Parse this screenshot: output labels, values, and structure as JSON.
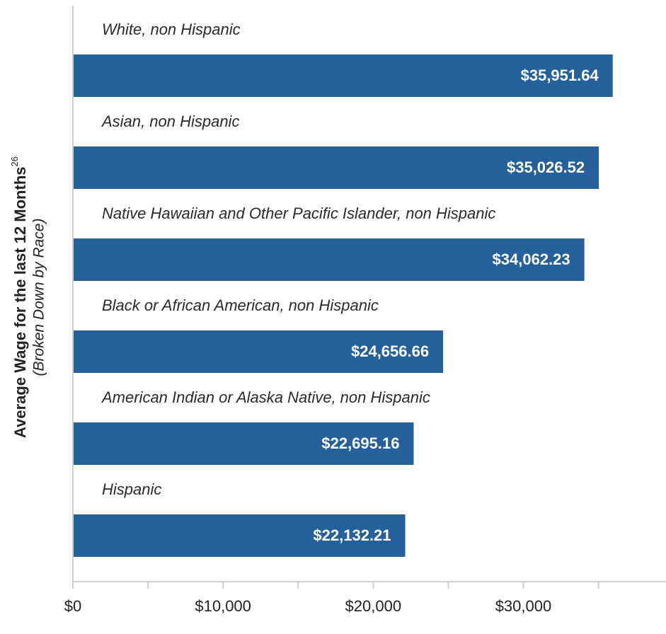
{
  "chart_data": {
    "type": "bar",
    "orientation": "horizontal",
    "y_axis_title": "Average Wage for the last 12 Months",
    "y_axis_title_superscript": "26",
    "y_axis_subtitle": "(Broken Down by Race)",
    "categories": [
      "White, non Hispanic",
      "Asian, non Hispanic",
      "Native Hawaiian and Other Pacific Islander, non Hispanic",
      "Black or African American, non Hispanic",
      "American Indian or Alaska Native, non Hispanic",
      "Hispanic"
    ],
    "values": [
      35951.64,
      35026.52,
      34062.23,
      24656.66,
      22695.16,
      22132.21
    ],
    "value_labels": [
      "$35,951.64",
      "$35,026.52",
      "$34,062.23",
      "$24,656.66",
      "$22,695.16",
      "$22,132.21"
    ],
    "color": "#25609a",
    "xlim": [
      0,
      39500
    ],
    "xticks": [
      {
        "value": 0,
        "label": "$0"
      },
      {
        "value": 10000,
        "label": "$10,000"
      },
      {
        "value": 20000,
        "label": "$20,000"
      },
      {
        "value": 30000,
        "label": "$30,000"
      }
    ],
    "xminorticks": [
      5000,
      15000,
      25000,
      35000
    ],
    "grid": false
  }
}
